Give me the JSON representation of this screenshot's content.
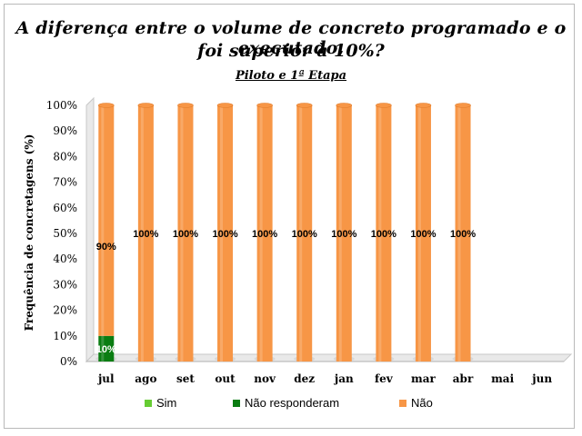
{
  "chart_data": {
    "type": "bar",
    "stacked": true,
    "title_lines": [
      "A diferença entre o volume de concreto programado e o executado,",
      "foi superior à 10%?"
    ],
    "subtitle": "Piloto e 1ª Etapa",
    "ylabel": "Frequência de concretagens (%)",
    "xlabel": "",
    "ylim": [
      0,
      100
    ],
    "yticks": [
      "0%",
      "10%",
      "20%",
      "30%",
      "40%",
      "50%",
      "60%",
      "70%",
      "80%",
      "90%",
      "100%"
    ],
    "categories": [
      "jul",
      "ago",
      "set",
      "out",
      "nov",
      "dez",
      "jan",
      "fev",
      "mar",
      "abr",
      "mai",
      "jun"
    ],
    "series": [
      {
        "name": "Sim",
        "color": "#66cc33",
        "values": [
          0,
          0,
          0,
          0,
          0,
          0,
          0,
          0,
          0,
          0,
          null,
          null
        ],
        "labels": [
          "",
          "",
          "",
          "",
          "",
          "",
          "",
          "",
          "",
          "",
          "",
          ""
        ]
      },
      {
        "name": "Não responderam",
        "color": "#0a7d12",
        "values": [
          10,
          0,
          0,
          0,
          0,
          0,
          0,
          0,
          0,
          0,
          null,
          null
        ],
        "labels": [
          "10%",
          "",
          "",
          "",
          "",
          "",
          "",
          "",
          "",
          "",
          "",
          ""
        ]
      },
      {
        "name": "Não",
        "color": "#f79646",
        "values": [
          90,
          100,
          100,
          100,
          100,
          100,
          100,
          100,
          100,
          100,
          null,
          null
        ],
        "labels": [
          "90%",
          "100%",
          "100%",
          "100%",
          "100%",
          "100%",
          "100%",
          "100%",
          "100%",
          "100%",
          "",
          ""
        ]
      }
    ],
    "legend_position": "bottom",
    "grid": false
  }
}
